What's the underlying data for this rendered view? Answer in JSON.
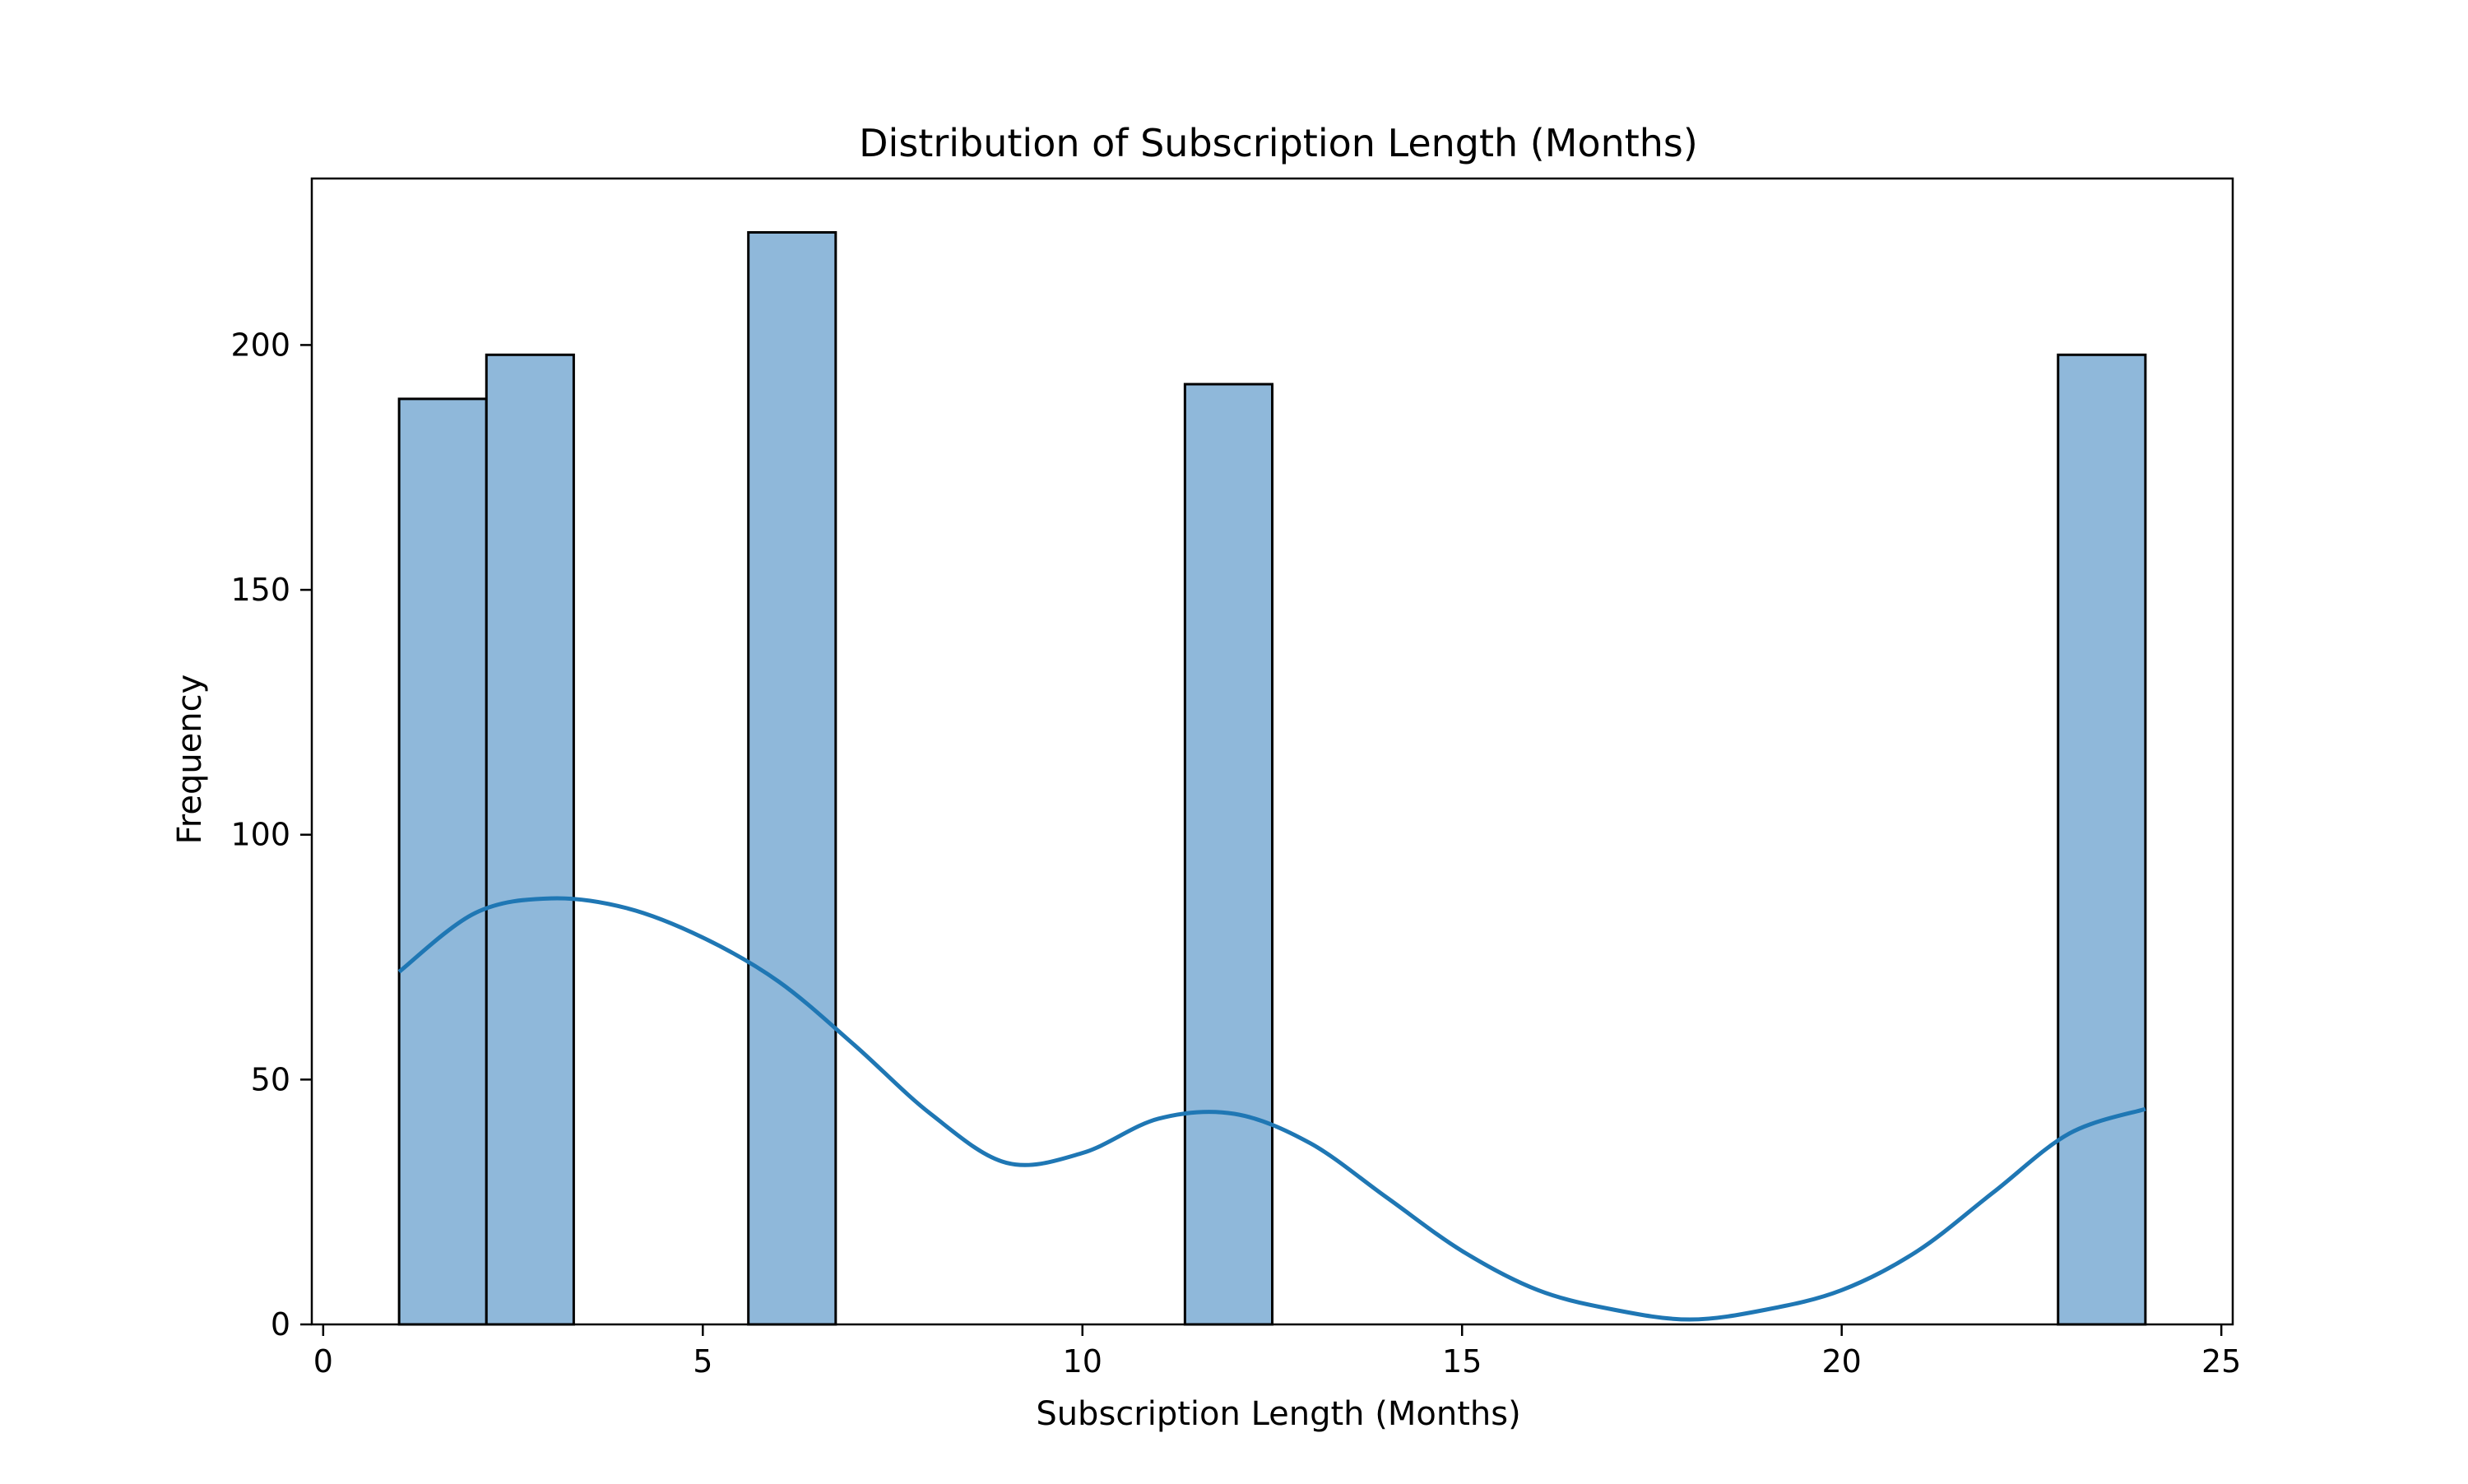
{
  "chart_data": {
    "type": "bar",
    "title": "Distribution of Subscription Length (Months)",
    "xlabel": "Subscription Length (Months)",
    "ylabel": "Frequency",
    "xlim": [
      -0.15,
      25.15
    ],
    "ylim": [
      0,
      234
    ],
    "x_ticks": [
      0,
      5,
      10,
      15,
      20,
      25
    ],
    "y_ticks": [
      0,
      50,
      100,
      150,
      200
    ],
    "grid": false,
    "bars": [
      {
        "x_start": 1.0,
        "x_end": 2.15,
        "count": 189
      },
      {
        "x_start": 2.15,
        "x_end": 3.3,
        "count": 198
      },
      {
        "x_start": 5.6,
        "x_end": 6.75,
        "count": 223
      },
      {
        "x_start": 11.35,
        "x_end": 12.5,
        "count": 192
      },
      {
        "x_start": 22.85,
        "x_end": 24.0,
        "count": 198
      }
    ],
    "kde": {
      "x": [
        1,
        2,
        3,
        4,
        5,
        6,
        7,
        8,
        9,
        10,
        11,
        12,
        13,
        14,
        15,
        16,
        17,
        18,
        19,
        20,
        21,
        22,
        23,
        24
      ],
      "y": [
        72,
        84,
        87,
        85,
        79,
        70,
        57,
        43,
        33,
        35,
        42,
        43,
        37,
        26,
        15,
        7,
        3,
        1,
        3,
        7,
        15,
        27,
        39,
        44
      ]
    },
    "colors": {
      "bar_fill": "#8fb8da",
      "bar_edge": "#000000",
      "kde_line": "#1f77b4"
    }
  }
}
